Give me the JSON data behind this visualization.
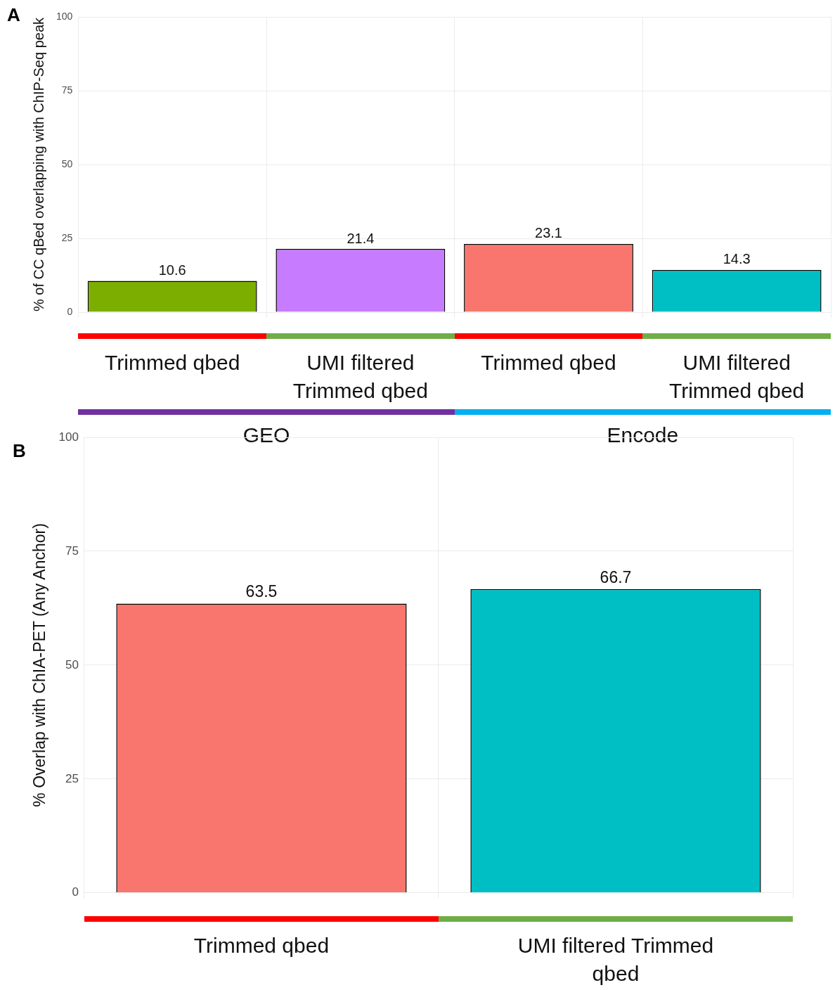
{
  "chart_data": [
    {
      "type": "bar",
      "title": "A",
      "ylabel": "% of CC qBed overlapping with ChIP-Seq peak",
      "categories": [
        "Trimmed qbed",
        "UMI filtered Trimmed qbed",
        "Trimmed qbed",
        "UMI filtered Trimmed qbed"
      ],
      "values": [
        10.6,
        21.4,
        23.1,
        14.3
      ],
      "colors": [
        "#7cae00",
        "#c77cff",
        "#f8766d",
        "#00bfc4"
      ],
      "ylim": [
        0,
        100
      ],
      "yticks": [
        0,
        25,
        50,
        75,
        100
      ],
      "grid": true,
      "data_labels": true,
      "annotations": [
        "GEO",
        "Encode"
      ]
    },
    {
      "type": "bar",
      "title": "B",
      "ylabel": "% Overlap with ChIA-PET (Any Anchor)",
      "categories": [
        "Trimmed qbed",
        "UMI filtered Trimmed qbed"
      ],
      "values": [
        63.5,
        66.7
      ],
      "colors": [
        "#f8766d",
        "#00bfc4"
      ],
      "ylim": [
        0,
        100
      ],
      "yticks": [
        0,
        25,
        50,
        75,
        100
      ],
      "grid": true,
      "data_labels": true
    }
  ]
}
